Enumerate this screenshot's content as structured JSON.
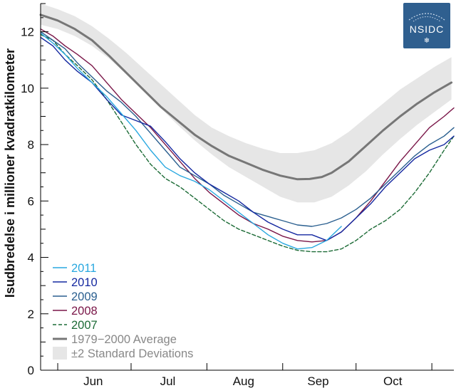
{
  "logo": {
    "text": "NSIDC",
    "snowflake": "❄",
    "colors": {
      "bg": "#2f5f8f",
      "text": "#ffffff"
    }
  },
  "chart_data": {
    "type": "line",
    "ylabel": "Isudbredelse i millioner kvadratkilometer",
    "ylim": [
      0,
      13
    ],
    "yticks": [
      0,
      2,
      4,
      6,
      8,
      10,
      12
    ],
    "x_unit": "day_of_year",
    "xlim": [
      145,
      314
    ],
    "month_labels": [
      {
        "label": "Jun",
        "doy": 166.5
      },
      {
        "label": "Jul",
        "doy": 197
      },
      {
        "label": "Aug",
        "doy": 228
      },
      {
        "label": "Sep",
        "doy": 258.5
      },
      {
        "label": "Oct",
        "doy": 289
      }
    ],
    "month_boundaries_doy": [
      152,
      182,
      213,
      244,
      274,
      305
    ],
    "grid": false,
    "legend_position": "bottom-left",
    "legend": [
      {
        "label": "2011",
        "color": "#29a8e0",
        "style": "solid"
      },
      {
        "label": "2010",
        "color": "#1428a0",
        "style": "solid"
      },
      {
        "label": "2009",
        "color": "#2a5f8f",
        "style": "solid"
      },
      {
        "label": "2008",
        "color": "#7a1648",
        "style": "solid"
      },
      {
        "label": "2007",
        "color": "#1c6b36",
        "style": "dashed"
      },
      {
        "label": "1979−2000 Average",
        "color": "#777777",
        "style": "thick"
      },
      {
        "label": "±2 Standard Deviations",
        "color": "#e6e6e6",
        "style": "band"
      }
    ],
    "band": {
      "x": [
        145,
        152,
        159,
        166,
        173,
        180,
        187,
        194,
        201,
        208,
        215,
        222,
        229,
        236,
        243,
        250,
        257,
        264,
        271,
        278,
        285,
        292,
        299,
        306,
        313
      ],
      "upper": [
        13.0,
        12.8,
        12.55,
        12.2,
        11.75,
        11.25,
        10.7,
        10.15,
        9.6,
        9.05,
        8.6,
        8.3,
        8.05,
        7.85,
        7.7,
        7.7,
        7.8,
        8.05,
        8.45,
        8.95,
        9.45,
        9.95,
        10.35,
        10.75,
        11.1
      ],
      "lower": [
        12.25,
        12.1,
        11.85,
        11.5,
        11.05,
        10.5,
        9.9,
        9.3,
        8.7,
        8.15,
        7.65,
        7.2,
        6.85,
        6.5,
        6.15,
        5.95,
        5.95,
        6.15,
        6.55,
        7.05,
        7.65,
        8.2,
        8.7,
        9.15,
        9.6
      ]
    },
    "series": [
      {
        "name": "1979−2000 Average",
        "x": [
          145,
          152,
          159,
          166,
          173,
          180,
          187,
          194,
          201,
          208,
          215,
          222,
          229,
          236,
          243,
          250,
          255,
          260,
          264,
          271,
          278,
          285,
          292,
          299,
          306,
          313
        ],
        "y": [
          12.6,
          12.4,
          12.1,
          11.7,
          11.15,
          10.55,
          9.95,
          9.35,
          8.85,
          8.35,
          7.95,
          7.6,
          7.35,
          7.1,
          6.9,
          6.77,
          6.78,
          6.85,
          7.0,
          7.4,
          7.95,
          8.5,
          9.0,
          9.45,
          9.85,
          10.2
        ]
      },
      {
        "name": "2011",
        "x": [
          145,
          150,
          155,
          160,
          166,
          172,
          178,
          184,
          190,
          196,
          202,
          208,
          214,
          220,
          226,
          232,
          238,
          244,
          250,
          256,
          262,
          268
        ],
        "y": [
          11.95,
          11.6,
          11.2,
          10.7,
          10.2,
          9.7,
          9.1,
          8.5,
          7.8,
          7.2,
          6.9,
          6.7,
          6.4,
          6.0,
          5.6,
          5.2,
          4.8,
          4.5,
          4.3,
          4.35,
          4.6,
          5.1
        ]
      },
      {
        "name": "2010",
        "x": [
          145,
          150,
          155,
          160,
          166,
          172,
          178,
          184,
          190,
          196,
          202,
          208,
          214,
          220,
          226,
          232,
          238,
          244,
          250,
          256,
          262,
          268,
          274,
          280,
          286,
          292,
          298,
          304,
          310,
          314
        ],
        "y": [
          11.8,
          11.5,
          11.0,
          10.6,
          10.2,
          9.6,
          9.05,
          8.85,
          8.65,
          8.1,
          7.5,
          7.0,
          6.6,
          6.3,
          6.0,
          5.6,
          5.25,
          5.0,
          4.8,
          4.8,
          4.6,
          4.9,
          5.4,
          5.9,
          6.5,
          7.0,
          7.5,
          7.8,
          8.0,
          8.3
        ]
      },
      {
        "name": "2009",
        "x": [
          145,
          150,
          155,
          160,
          166,
          172,
          178,
          184,
          190,
          196,
          202,
          208,
          214,
          220,
          226,
          232,
          238,
          244,
          250,
          256,
          262,
          268,
          274,
          280,
          286,
          292,
          298,
          304,
          310,
          314
        ],
        "y": [
          12.0,
          11.7,
          11.4,
          10.9,
          10.4,
          9.9,
          9.5,
          9.0,
          8.4,
          7.8,
          7.2,
          6.9,
          6.6,
          6.2,
          5.9,
          5.6,
          5.45,
          5.3,
          5.15,
          5.1,
          5.2,
          5.4,
          5.7,
          6.1,
          6.6,
          7.1,
          7.6,
          8.0,
          8.3,
          8.6
        ]
      },
      {
        "name": "2008",
        "x": [
          145,
          150,
          155,
          160,
          166,
          172,
          178,
          184,
          190,
          196,
          202,
          208,
          214,
          220,
          226,
          232,
          238,
          244,
          250,
          256,
          262,
          268,
          274,
          280,
          286,
          292,
          298,
          304,
          310,
          314
        ],
        "y": [
          12.1,
          11.85,
          11.5,
          11.2,
          10.8,
          10.2,
          9.6,
          9.1,
          8.6,
          8.0,
          7.4,
          6.8,
          6.3,
          5.9,
          5.5,
          5.2,
          5.0,
          4.75,
          4.6,
          4.55,
          4.6,
          4.9,
          5.4,
          6.0,
          6.7,
          7.4,
          8.0,
          8.6,
          9.0,
          9.3
        ]
      },
      {
        "name": "2007",
        "x": [
          145,
          150,
          155,
          160,
          166,
          172,
          178,
          184,
          190,
          196,
          202,
          208,
          214,
          220,
          226,
          232,
          238,
          244,
          250,
          256,
          262,
          268,
          274,
          280,
          286,
          292,
          298,
          304,
          310,
          314
        ],
        "y": [
          11.9,
          11.7,
          11.2,
          10.8,
          10.3,
          9.6,
          8.8,
          8.0,
          7.3,
          6.8,
          6.5,
          6.1,
          5.7,
          5.3,
          5.0,
          4.8,
          4.6,
          4.4,
          4.25,
          4.2,
          4.2,
          4.3,
          4.6,
          5.0,
          5.3,
          5.7,
          6.3,
          7.0,
          7.8,
          8.3
        ]
      }
    ]
  }
}
